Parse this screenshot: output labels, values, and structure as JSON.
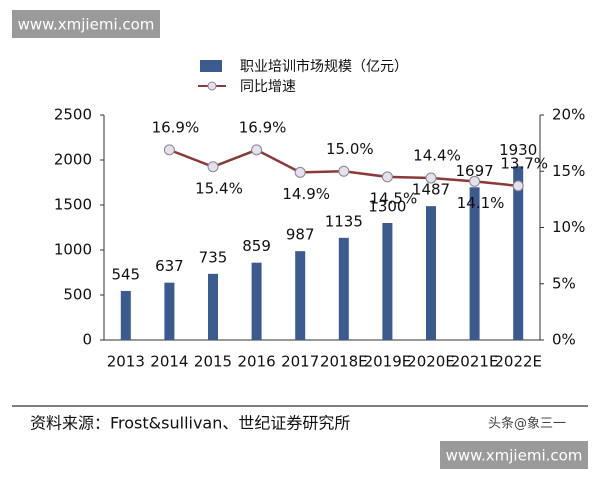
{
  "chart_data": {
    "type": "bar-line",
    "categories": [
      "2013",
      "2014",
      "2015",
      "2016",
      "2017",
      "2018E",
      "2019E",
      "2020E",
      "2021E",
      "2022E"
    ],
    "series": [
      {
        "name": "职业培训市场规模（亿元）",
        "type": "bar",
        "color": "#3b5b8f",
        "values": [
          545,
          637,
          735,
          859,
          987,
          1135,
          1300,
          1487,
          1697,
          1930
        ]
      },
      {
        "name": "同比增速",
        "type": "line",
        "axis": "y2",
        "color": "#8b3a3a",
        "values": [
          null,
          16.9,
          15.4,
          16.9,
          14.9,
          15.0,
          14.5,
          14.4,
          14.1,
          13.7
        ],
        "value_labels": [
          null,
          "16.9%",
          "15.4%",
          "16.9%",
          "14.9%",
          "15.0%",
          "14.5%",
          "14.4%",
          "14.1%",
          "13.7%"
        ]
      }
    ],
    "ylim": [
      0,
      2500
    ],
    "yticks": [
      0,
      500,
      1000,
      1500,
      2000,
      2500
    ],
    "y2lim": [
      0,
      20
    ],
    "y2ticks": [
      {
        "value": 0,
        "label": "0%"
      },
      {
        "value": 5,
        "label": "5%"
      },
      {
        "value": 10,
        "label": "10%"
      },
      {
        "value": 15,
        "label": "15%"
      },
      {
        "value": 20,
        "label": "20%"
      }
    ]
  },
  "source": "资料来源：Frost&sullivan、世纪证券研究所",
  "credit": "头条@象三一",
  "watermarks": [
    "www.xmjiemi.com",
    "www.xmjiemi.com"
  ]
}
